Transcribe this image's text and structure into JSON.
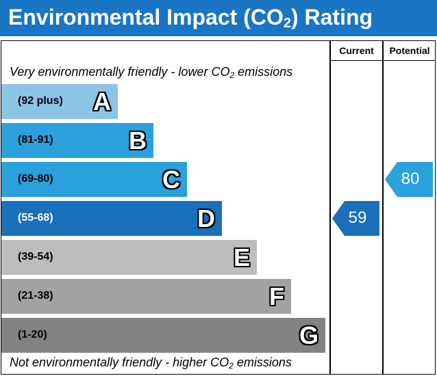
{
  "header": {
    "title_main": "Environmental Impact (CO",
    "title_sub": "2",
    "title_end": ") Rating",
    "background_color": "#1a75c4"
  },
  "columns": {
    "current_label": "Current",
    "potential_label": "Potential"
  },
  "captions": {
    "top_main": "Very environmentally friendly - lower CO",
    "top_sub": "2",
    "top_end": " emissions",
    "bottom_main": "Not environmentally friendly - higher CO",
    "bottom_sub": "2",
    "bottom_end": " emissions"
  },
  "bands": [
    {
      "letter": "A",
      "range": "(92 plus)",
      "color": "#8cc4e6"
    },
    {
      "letter": "B",
      "range": "(81-91)",
      "color": "#2ca0dc"
    },
    {
      "letter": "C",
      "range": "(69-80)",
      "color": "#2aa0dc"
    },
    {
      "letter": "D",
      "range": "(55-68)",
      "color": "#1a6fbb"
    },
    {
      "letter": "E",
      "range": "(39-54)",
      "color": "#bdbdbd"
    },
    {
      "letter": "F",
      "range": "(21-38)",
      "color": "#a2a2a2"
    },
    {
      "letter": "G",
      "range": "(1-20)",
      "color": "#828282"
    }
  ],
  "ratings": {
    "current": {
      "value": "59",
      "band": "D",
      "color": "#1a6fbb"
    },
    "potential": {
      "value": "80",
      "band": "C",
      "color": "#2aa0dc"
    }
  }
}
